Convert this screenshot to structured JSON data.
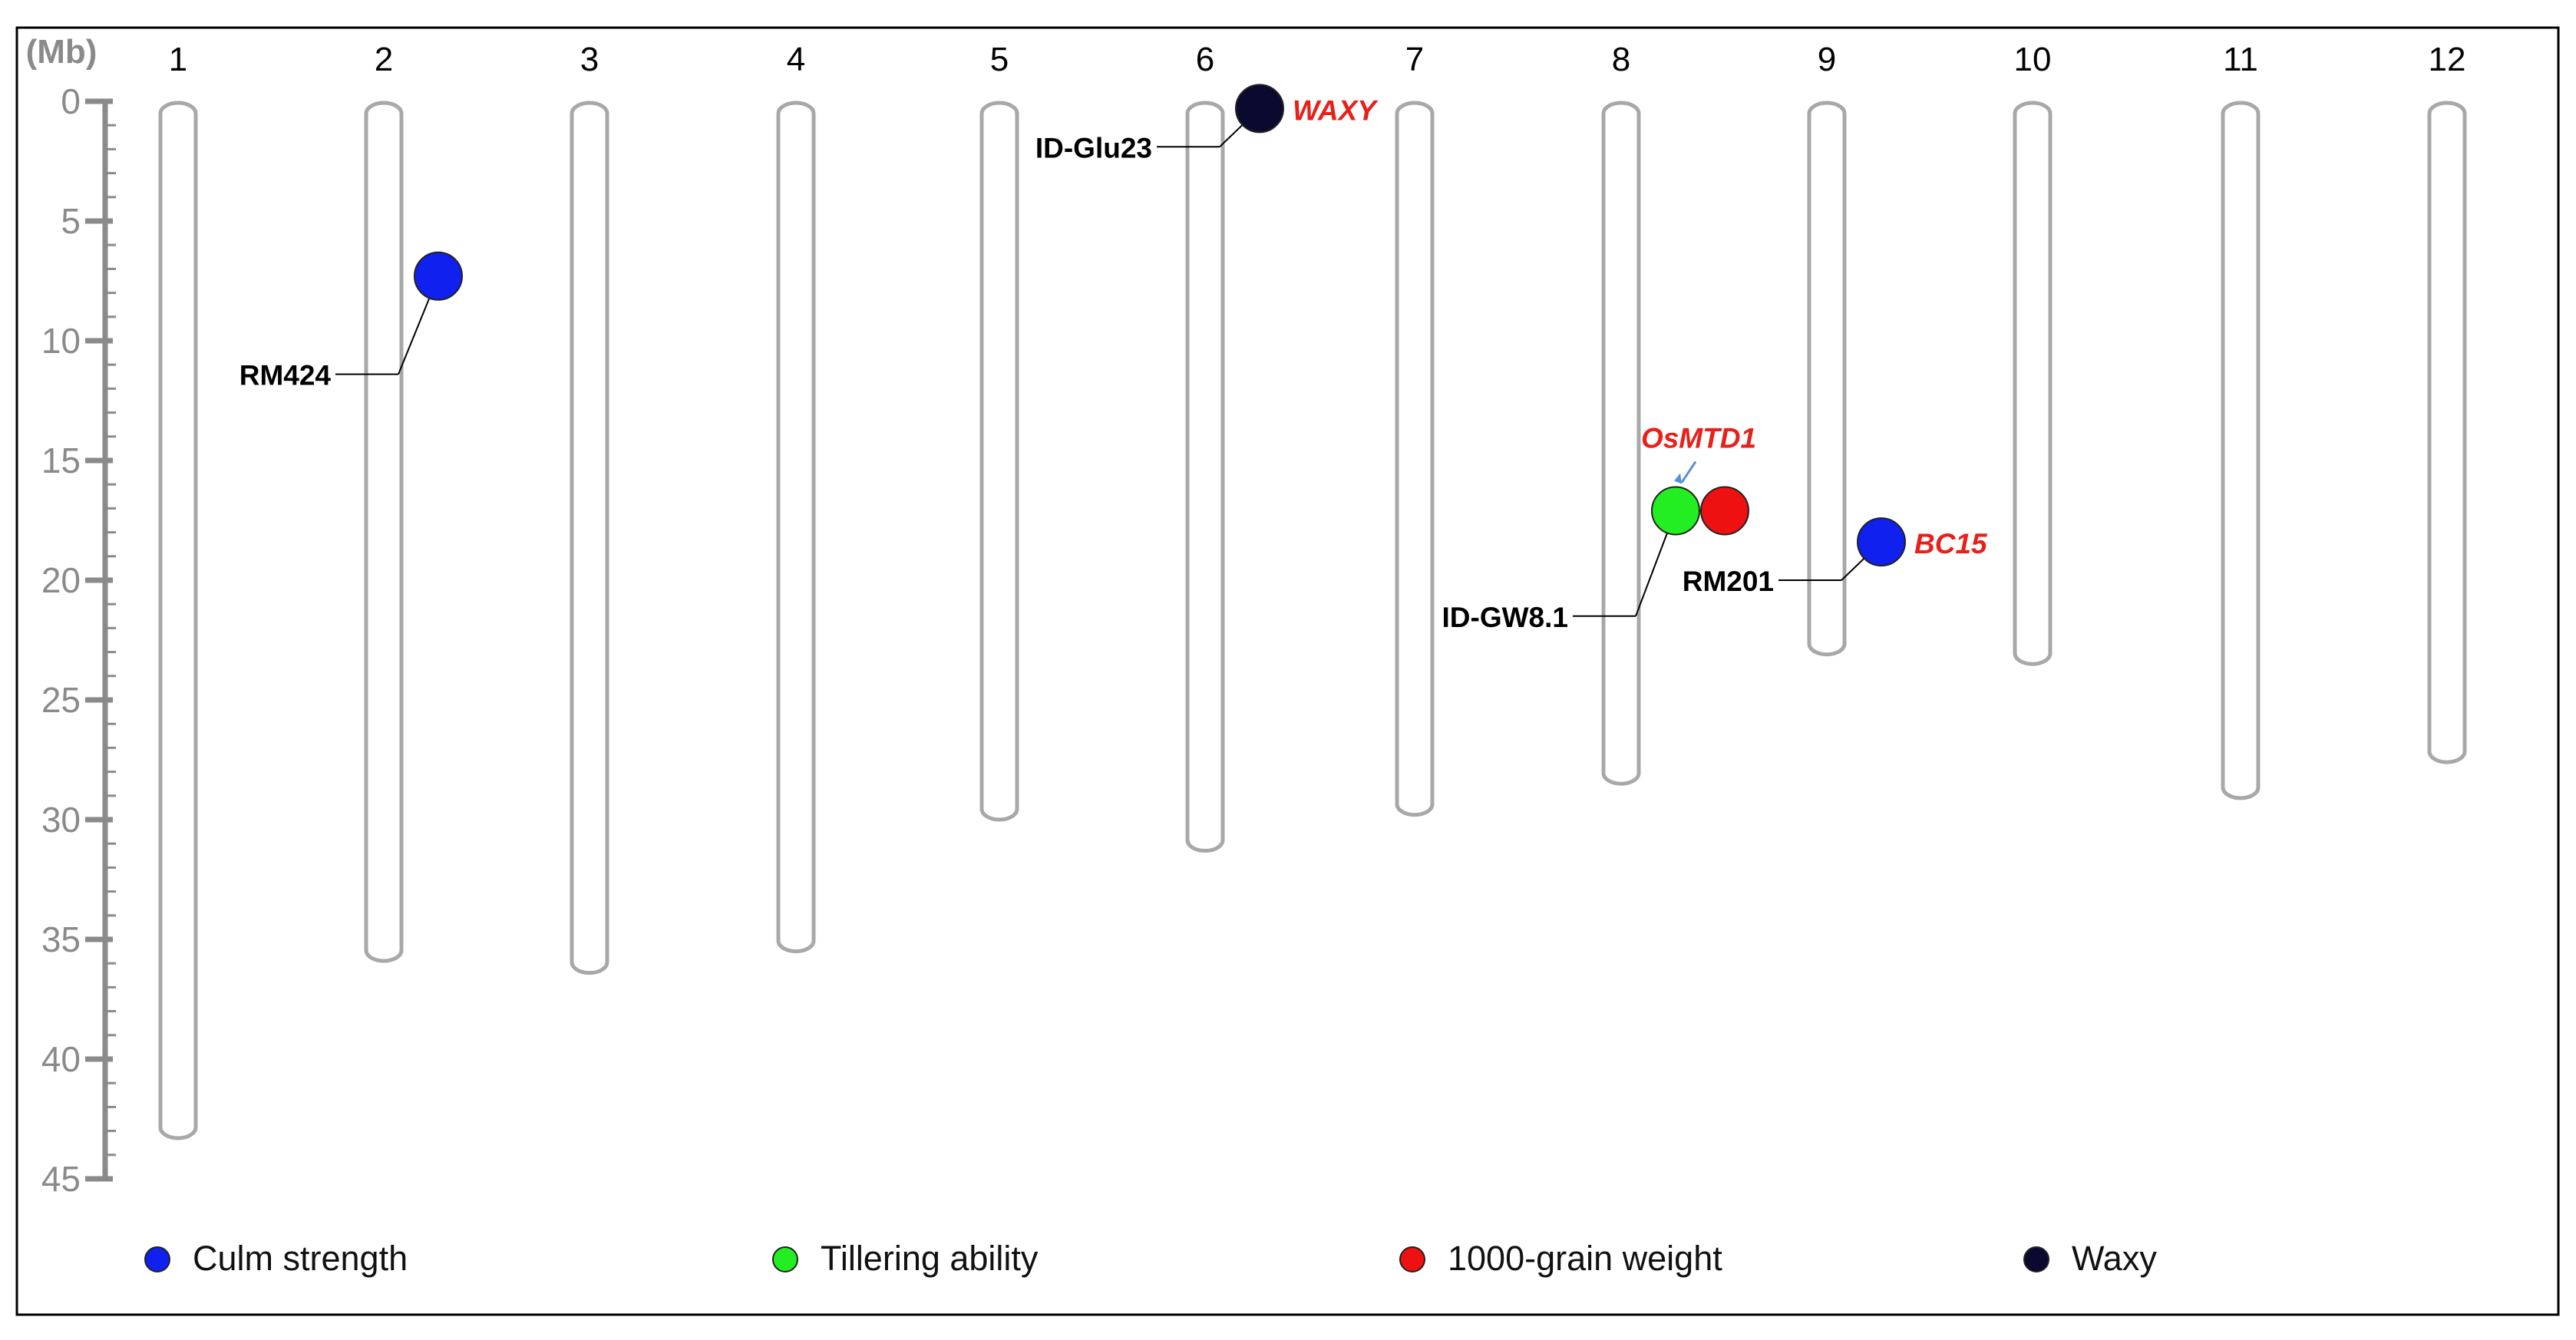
{
  "figure": {
    "unit_label": "(Mb)",
    "y_ticks": [
      0,
      5,
      10,
      15,
      20,
      25,
      30,
      35,
      40,
      45
    ],
    "y_range_mb": [
      0,
      45
    ],
    "minor_tick_step_mb": 1
  },
  "chromosomes": [
    {
      "id": "1",
      "length_mb": 43.3
    },
    {
      "id": "2",
      "length_mb": 35.9
    },
    {
      "id": "3",
      "length_mb": 36.4
    },
    {
      "id": "4",
      "length_mb": 35.5
    },
    {
      "id": "5",
      "length_mb": 30.0
    },
    {
      "id": "6",
      "length_mb": 31.3
    },
    {
      "id": "7",
      "length_mb": 29.8
    },
    {
      "id": "8",
      "length_mb": 28.5
    },
    {
      "id": "9",
      "length_mb": 23.1
    },
    {
      "id": "10",
      "length_mb": 23.5
    },
    {
      "id": "11",
      "length_mb": 29.1
    },
    {
      "id": "12",
      "length_mb": 27.6
    }
  ],
  "markers": [
    {
      "name": "RM424",
      "chromosome": "2",
      "position_mb": 11.4,
      "trait_dots": [
        "culm"
      ],
      "dot_position_mb": 7.3,
      "gene_label": ""
    },
    {
      "name": "ID-Glu23",
      "chromosome": "6",
      "position_mb": 1.9,
      "trait_dots": [
        "waxy"
      ],
      "dot_position_mb": 0.3,
      "gene_label": "WAXY"
    },
    {
      "name": "ID-GW8.1",
      "chromosome": "8",
      "position_mb": 21.5,
      "trait_dots": [
        "tiller",
        "grain"
      ],
      "dot_position_mb": 17.1,
      "gene_label": "OsMTD1"
    },
    {
      "name": "RM201",
      "chromosome": "9",
      "position_mb": 20.0,
      "trait_dots": [
        "culm"
      ],
      "dot_position_mb": 18.4,
      "gene_label": "BC15"
    }
  ],
  "legend": [
    {
      "key": "culm",
      "label": "Culm strength",
      "color": "#1020ee"
    },
    {
      "key": "tiller",
      "label": "Tillering ability",
      "color": "#22ee22"
    },
    {
      "key": "grain",
      "label": "1000-grain weight",
      "color": "#ee1111"
    },
    {
      "key": "waxy",
      "label": "Waxy",
      "color": "#0a0a30"
    }
  ],
  "colors": {
    "axis": "#8a8a8a",
    "chromosome_stroke": "#a8a8a8",
    "gene_label": "#e8201a",
    "marker_label": "#000000",
    "arrow": "#5a8fd0"
  }
}
